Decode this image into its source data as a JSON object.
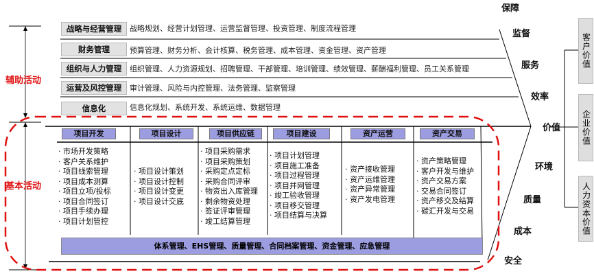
{
  "side_labels": {
    "support": "辅助活动",
    "primary": "基本活动"
  },
  "support": [
    {
      "name": "战略与经营管理",
      "items": "战略规划、经营计划管理、运营监督管理、投资管理、制度流程管理"
    },
    {
      "name": "财务管理",
      "items": "预算管理、财务分析、会计核算、税务管理、成本管理、资金管理、资产管理"
    },
    {
      "name": "组织与人力管理",
      "items": "组织管理、人力资源规划、招聘管理、干部管理、培训管理、绩效管理、薪酬福利管理、员工关系管理"
    },
    {
      "name": "运营及风控管理",
      "items": "审计管理、风险与内控管理、法务管理、监察管理"
    },
    {
      "name": "信息化",
      "items": "信息化规划、系统开发、系统运维、数据管理"
    }
  ],
  "primary": [
    {
      "name": "项目开发",
      "items": [
        "市场开发策略",
        "客户关系维护",
        "项目线索管理",
        "项目成本测算",
        "项目立项/投标",
        "项目合同签订",
        "项目手续办理",
        "项目计划管控"
      ]
    },
    {
      "name": "项目设计",
      "items": [
        "项目设计策划",
        "项目设计控制",
        "项目设计变更",
        "项目设计交底"
      ]
    },
    {
      "name": "项目供应链",
      "items": [
        "项目采购需求",
        "项目采购策划",
        "采购定点定标",
        "采购合同评审",
        "物资出入库管理",
        "剩余物资处理",
        "签证评审管理",
        "竣工结算管理"
      ]
    },
    {
      "name": "项目建设",
      "items": [
        "项目计划管理",
        "项目施工准备",
        "项目过程管理",
        "项目并网管理",
        "竣工验收管理",
        "项目移交管理",
        "项目结算与决算"
      ]
    },
    {
      "name": "资产运营",
      "items": [
        "资产接收管理",
        "资产运维管理",
        "资产异常管理",
        "资产发电管理"
      ]
    },
    {
      "name": "资产交易",
      "items": [
        "资产策略管理",
        "客户开发与维护",
        "资产交易方案",
        "交易合同签订",
        "资产移交及结算",
        "碳汇开发与交易"
      ]
    }
  ],
  "band": "体系管理、EHS管理、质量管理、合同档案管理、资金管理、应急管理",
  "right_labels": [
    "保障",
    "监督",
    "服务",
    "效率",
    "价值",
    "环境",
    "质量",
    "成本",
    "安全"
  ],
  "values": [
    "客户价值",
    "企业价值",
    "人力资本价值"
  ],
  "colors": {
    "header": "#9c9ce0",
    "dash": "#e01010"
  }
}
